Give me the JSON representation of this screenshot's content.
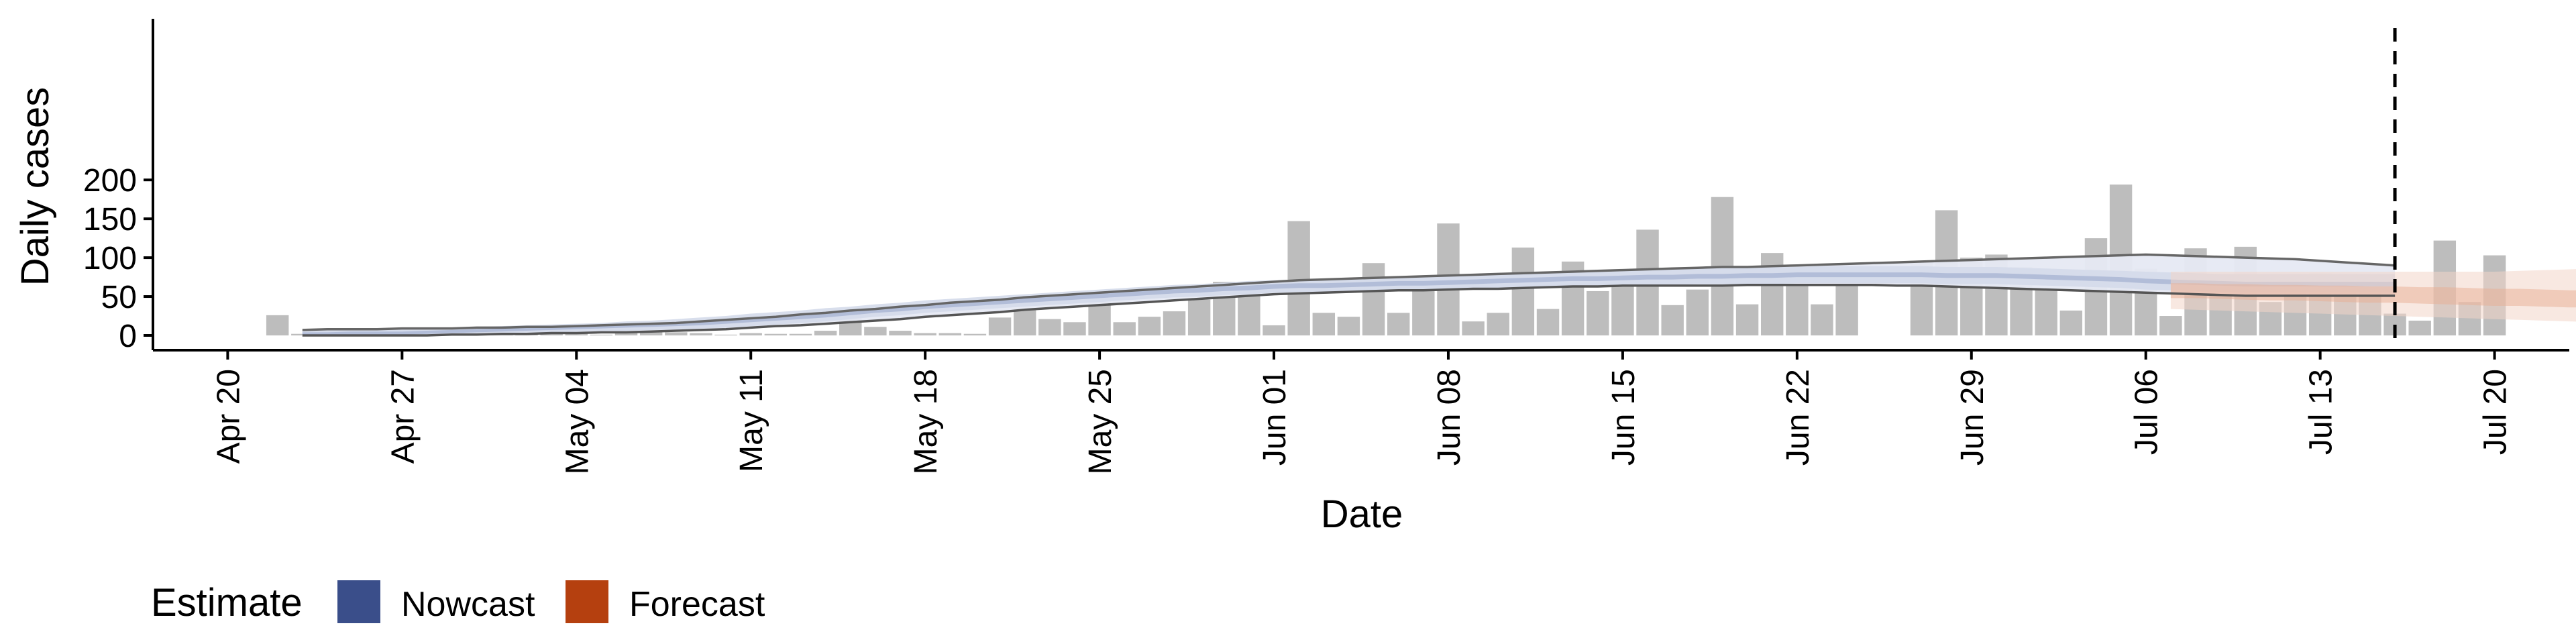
{
  "chart_data": {
    "type": "bar",
    "title": "",
    "xlabel": "Date",
    "ylabel": "Daily cases",
    "ylim": [
      0,
      200
    ],
    "yticks": [
      0,
      50,
      100,
      150,
      200
    ],
    "xlim": [
      "2020-04-17",
      "2020-07-23"
    ],
    "xticks": [
      {
        "date": "2020-04-20",
        "label": "Apr 20"
      },
      {
        "date": "2020-04-27",
        "label": "Apr 27"
      },
      {
        "date": "2020-05-04",
        "label": "May 04"
      },
      {
        "date": "2020-05-11",
        "label": "May 11"
      },
      {
        "date": "2020-05-18",
        "label": "May 18"
      },
      {
        "date": "2020-05-25",
        "label": "May 25"
      },
      {
        "date": "2020-06-01",
        "label": "Jun 01"
      },
      {
        "date": "2020-06-08",
        "label": "Jun 08"
      },
      {
        "date": "2020-06-15",
        "label": "Jun 15"
      },
      {
        "date": "2020-06-22",
        "label": "Jun 22"
      },
      {
        "date": "2020-06-29",
        "label": "Jun 29"
      },
      {
        "date": "2020-07-06",
        "label": "Jul 06"
      },
      {
        "date": "2020-07-13",
        "label": "Jul 13"
      },
      {
        "date": "2020-07-20",
        "label": "Jul 20"
      }
    ],
    "reference_line_date": "2020-07-16",
    "grid": false,
    "legend": {
      "title": "Estimate",
      "placement": "bottom-left",
      "entries": [
        {
          "name": "Nowcast",
          "color": "#3A4E8A"
        },
        {
          "name": "Forecast",
          "color": "#B5400F"
        }
      ]
    },
    "bars": {
      "start_date": "2020-04-22",
      "color": "#BDBDBD",
      "values": [
        26,
        2,
        1,
        1,
        3,
        1,
        1,
        2,
        3,
        2,
        4,
        2,
        6,
        1,
        12,
        8,
        4,
        3,
        1,
        3,
        2,
        2,
        6,
        23,
        11,
        6,
        3,
        3,
        2,
        23,
        34,
        21,
        17,
        48,
        17,
        24,
        31,
        46,
        69,
        59,
        13,
        147,
        29,
        24,
        93,
        29,
        60,
        144,
        18,
        29,
        113,
        34,
        95,
        57,
        64,
        136,
        39,
        59,
        178,
        40,
        106,
        65,
        40,
        66,
        0,
        0,
        96,
        161,
        100,
        104,
        88,
        59,
        32,
        125,
        194,
        86,
        25,
        112,
        57,
        114,
        43,
        64,
        80,
        72,
        58,
        28,
        19,
        122,
        43,
        103
      ]
    },
    "nowcast": {
      "start_date": "2020-04-23",
      "median": [
        2,
        2,
        3,
        3,
        3,
        4,
        5,
        6,
        7,
        8,
        9,
        10,
        11,
        12,
        13,
        15,
        16,
        18,
        20,
        22,
        24,
        26,
        29,
        32,
        34,
        37,
        39,
        41,
        43,
        45,
        47,
        49,
        51,
        53,
        55,
        57,
        58,
        60,
        61,
        63,
        64,
        64,
        65,
        66,
        67,
        67,
        68,
        69,
        70,
        71,
        72,
        73,
        73,
        74,
        75,
        75,
        76,
        76,
        77,
        77,
        78,
        78,
        78,
        78,
        78,
        78,
        77,
        77,
        77,
        76,
        75,
        74,
        73,
        72,
        70,
        69,
        68,
        67,
        66,
        66,
        66,
        66,
        66,
        66,
        66
      ],
      "inner_lo": [
        0,
        0,
        1,
        1,
        1,
        2,
        3,
        4,
        5,
        6,
        7,
        8,
        9,
        10,
        11,
        12,
        13,
        15,
        17,
        19,
        21,
        23,
        26,
        29,
        31,
        34,
        36,
        38,
        40,
        42,
        44,
        46,
        48,
        50,
        52,
        54,
        55,
        57,
        58,
        60,
        61,
        61,
        62,
        63,
        64,
        64,
        65,
        66,
        67,
        68,
        69,
        70,
        70,
        71,
        72,
        72,
        73,
        73,
        74,
        74,
        75,
        75,
        75,
        75,
        75,
        75,
        74,
        74,
        74,
        73,
        72,
        71,
        70,
        69,
        67,
        66,
        65,
        64,
        63,
        63,
        63,
        63,
        63,
        63,
        63
      ],
      "inner_hi": [
        4,
        4,
        5,
        5,
        5,
        6,
        7,
        8,
        9,
        10,
        11,
        12,
        13,
        14,
        15,
        17,
        18,
        21,
        23,
        25,
        27,
        29,
        32,
        35,
        37,
        40,
        42,
        44,
        46,
        48,
        50,
        52,
        54,
        56,
        58,
        60,
        61,
        63,
        64,
        66,
        67,
        67,
        68,
        69,
        70,
        70,
        71,
        72,
        73,
        74,
        75,
        76,
        76,
        77,
        78,
        78,
        79,
        79,
        80,
        80,
        81,
        81,
        81,
        81,
        81,
        81,
        80,
        80,
        80,
        79,
        78,
        77,
        76,
        75,
        73,
        72,
        71,
        70,
        69,
        69,
        69,
        69,
        69,
        69,
        69
      ],
      "outer_lo": [
        0,
        0,
        0,
        0,
        0,
        0,
        1,
        2,
        3,
        4,
        4,
        5,
        6,
        6,
        7,
        8,
        9,
        10,
        12,
        14,
        16,
        18,
        21,
        24,
        26,
        29,
        31,
        33,
        35,
        37,
        39,
        41,
        43,
        45,
        47,
        49,
        50,
        52,
        53,
        55,
        56,
        56,
        57,
        58,
        59,
        59,
        60,
        61,
        61,
        62,
        63,
        64,
        64,
        65,
        65,
        65,
        66,
        66,
        66,
        66,
        67,
        67,
        67,
        67,
        67,
        67,
        66,
        66,
        66,
        65,
        64,
        63,
        62,
        61,
        59,
        58,
        57,
        56,
        55,
        55,
        55,
        55,
        55,
        55,
        55
      ],
      "outer_hi": [
        7,
        7,
        8,
        8,
        9,
        9,
        10,
        11,
        12,
        13,
        14,
        15,
        16,
        18,
        19,
        21,
        23,
        25,
        28,
        30,
        32,
        35,
        37,
        40,
        42,
        45,
        47,
        49,
        51,
        53,
        55,
        57,
        59,
        61,
        63,
        65,
        66,
        68,
        70,
        71,
        72,
        73,
        74,
        75,
        76,
        76,
        77,
        78,
        79,
        80,
        81,
        82,
        83,
        84,
        85,
        85,
        86,
        87,
        87,
        88,
        88,
        89,
        89,
        89,
        89,
        89,
        88,
        88,
        88,
        87,
        86,
        85,
        84,
        83,
        82,
        81,
        80,
        79,
        79,
        79,
        79,
        79,
        79,
        79,
        79
      ],
      "ci90_lo": [
        0,
        0,
        0,
        0,
        0,
        0,
        1,
        1,
        2,
        2,
        3,
        3,
        4,
        4,
        5,
        6,
        7,
        8,
        10,
        12,
        13,
        15,
        17,
        19,
        21,
        24,
        26,
        28,
        30,
        33,
        35,
        37,
        39,
        41,
        43,
        45,
        47,
        49,
        51,
        53,
        54,
        55,
        56,
        57,
        58,
        58,
        59,
        60,
        60,
        61,
        62,
        63,
        63,
        64,
        64,
        64,
        64,
        64,
        65,
        65,
        65,
        65,
        65,
        65,
        64,
        64,
        63,
        62,
        61,
        60,
        59,
        58,
        57,
        56,
        55,
        54,
        53,
        52,
        51,
        51,
        51,
        51,
        51,
        51,
        51
      ],
      "ci90_hi": [
        7,
        8,
        8,
        8,
        9,
        9,
        9,
        10,
        10,
        11,
        11,
        12,
        13,
        14,
        15,
        16,
        18,
        20,
        22,
        24,
        27,
        29,
        32,
        34,
        37,
        39,
        42,
        44,
        46,
        49,
        51,
        53,
        55,
        57,
        59,
        61,
        63,
        65,
        67,
        69,
        71,
        72,
        73,
        74,
        75,
        76,
        77,
        78,
        79,
        80,
        81,
        82,
        83,
        84,
        85,
        86,
        87,
        88,
        88,
        89,
        90,
        91,
        92,
        93,
        94,
        95,
        96,
        97,
        98,
        99,
        100,
        101,
        102,
        103,
        104,
        103,
        102,
        101,
        100,
        99,
        98,
        96,
        94,
        92,
        90
      ]
    },
    "forecast": {
      "start_date": "2020-07-07",
      "median": [
        57,
        57,
        56,
        56,
        55,
        55,
        54,
        54,
        53,
        53,
        52,
        52,
        51,
        51,
        51,
        50,
        50,
        50,
        50,
        49
      ],
      "inner_lo": [
        48,
        48,
        47,
        46,
        45,
        45,
        44,
        43,
        42,
        42,
        41,
        40,
        39,
        38,
        38,
        37,
        36,
        36,
        35,
        35
      ],
      "inner_hi": [
        67,
        67,
        66,
        66,
        65,
        65,
        64,
        64,
        63,
        63,
        62,
        62,
        61,
        60,
        60,
        59,
        58,
        58,
        57,
        56
      ],
      "outer_lo": [
        34,
        33,
        32,
        31,
        30,
        29,
        28,
        27,
        26,
        25,
        24,
        23,
        22,
        21,
        20,
        19,
        18,
        17,
        16,
        15
      ],
      "outer_hi": [
        82,
        82,
        82,
        82,
        82,
        82,
        82,
        82,
        82,
        82,
        82,
        82,
        82,
        82,
        83,
        84,
        85,
        86,
        87,
        88
      ]
    }
  }
}
